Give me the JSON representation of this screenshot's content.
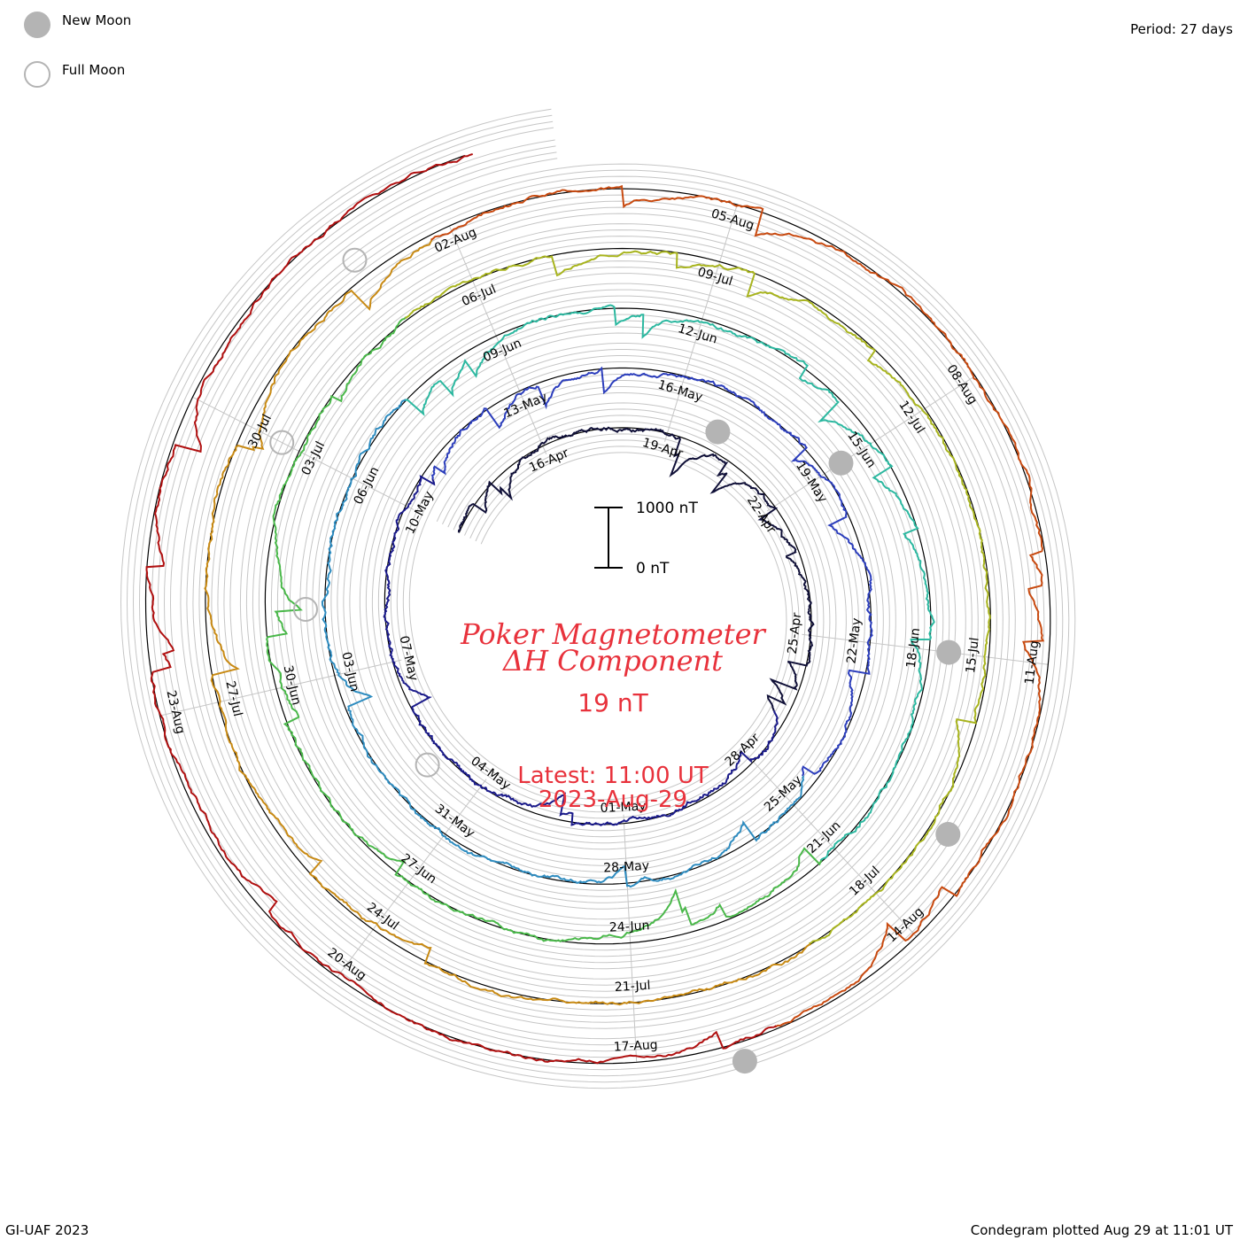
{
  "header": {
    "period_text": "Period: 27 days"
  },
  "legend": {
    "new_moon_label": "New Moon",
    "full_moon_label": "Full Moon",
    "new_moon_color": "#b4b4b4",
    "full_moon_color": "#b4b4b4"
  },
  "footer": {
    "credit": "GI-UAF 2023",
    "plotted": "Condegram plotted Aug 29 at 11:01 UT"
  },
  "chart_data": {
    "type": "line",
    "subtype": "spiral condegram",
    "title_line1": "Poker Magnetometer",
    "title_line2": "ΔH Component",
    "current_value": "19 nT",
    "latest_line1": "Latest: 11:00 UT",
    "latest_line2": "2023-Aug-29",
    "period_days": 27,
    "scale_bar": {
      "top_label": "1000 nT",
      "bottom_label": "0 nT",
      "value_nT": 1000
    },
    "start_date": "2023-04-13",
    "end_date": "2023-08-29",
    "series_colors": [
      "#101038",
      "#1a1a8a",
      "#2c3ebc",
      "#2e8cc0",
      "#2cb8a0",
      "#4ab84a",
      "#a8b41e",
      "#c88a14",
      "#c84a10",
      "#b01010"
    ],
    "date_labels": [
      "16-Apr",
      "19-Apr",
      "22-Apr",
      "25-Apr",
      "28-Apr",
      "01-May",
      "04-May",
      "07-May",
      "10-May",
      "13-May",
      "16-May",
      "19-May",
      "22-May",
      "25-May",
      "28-May",
      "31-May",
      "03-Jun",
      "06-Jun",
      "09-Jun",
      "12-Jun",
      "15-Jun",
      "18-Jun",
      "21-Jun",
      "24-Jun",
      "27-Jun",
      "30-Jun",
      "03-Jul",
      "06-Jul",
      "09-Jul",
      "12-Jul",
      "15-Jul",
      "18-Jul",
      "21-Jul",
      "24-Jul",
      "27-Jul",
      "30-Jul",
      "02-Aug",
      "05-Aug",
      "08-Aug",
      "11-Aug",
      "14-Aug",
      "17-Aug",
      "20-Aug",
      "23-Aug"
    ],
    "new_moons": [
      "2023-04-20",
      "2023-05-19",
      "2023-06-18",
      "2023-07-17",
      "2023-08-16"
    ],
    "full_moons": [
      "2023-05-05",
      "2023-06-04",
      "2023-07-03",
      "2023-08-01"
    ]
  }
}
